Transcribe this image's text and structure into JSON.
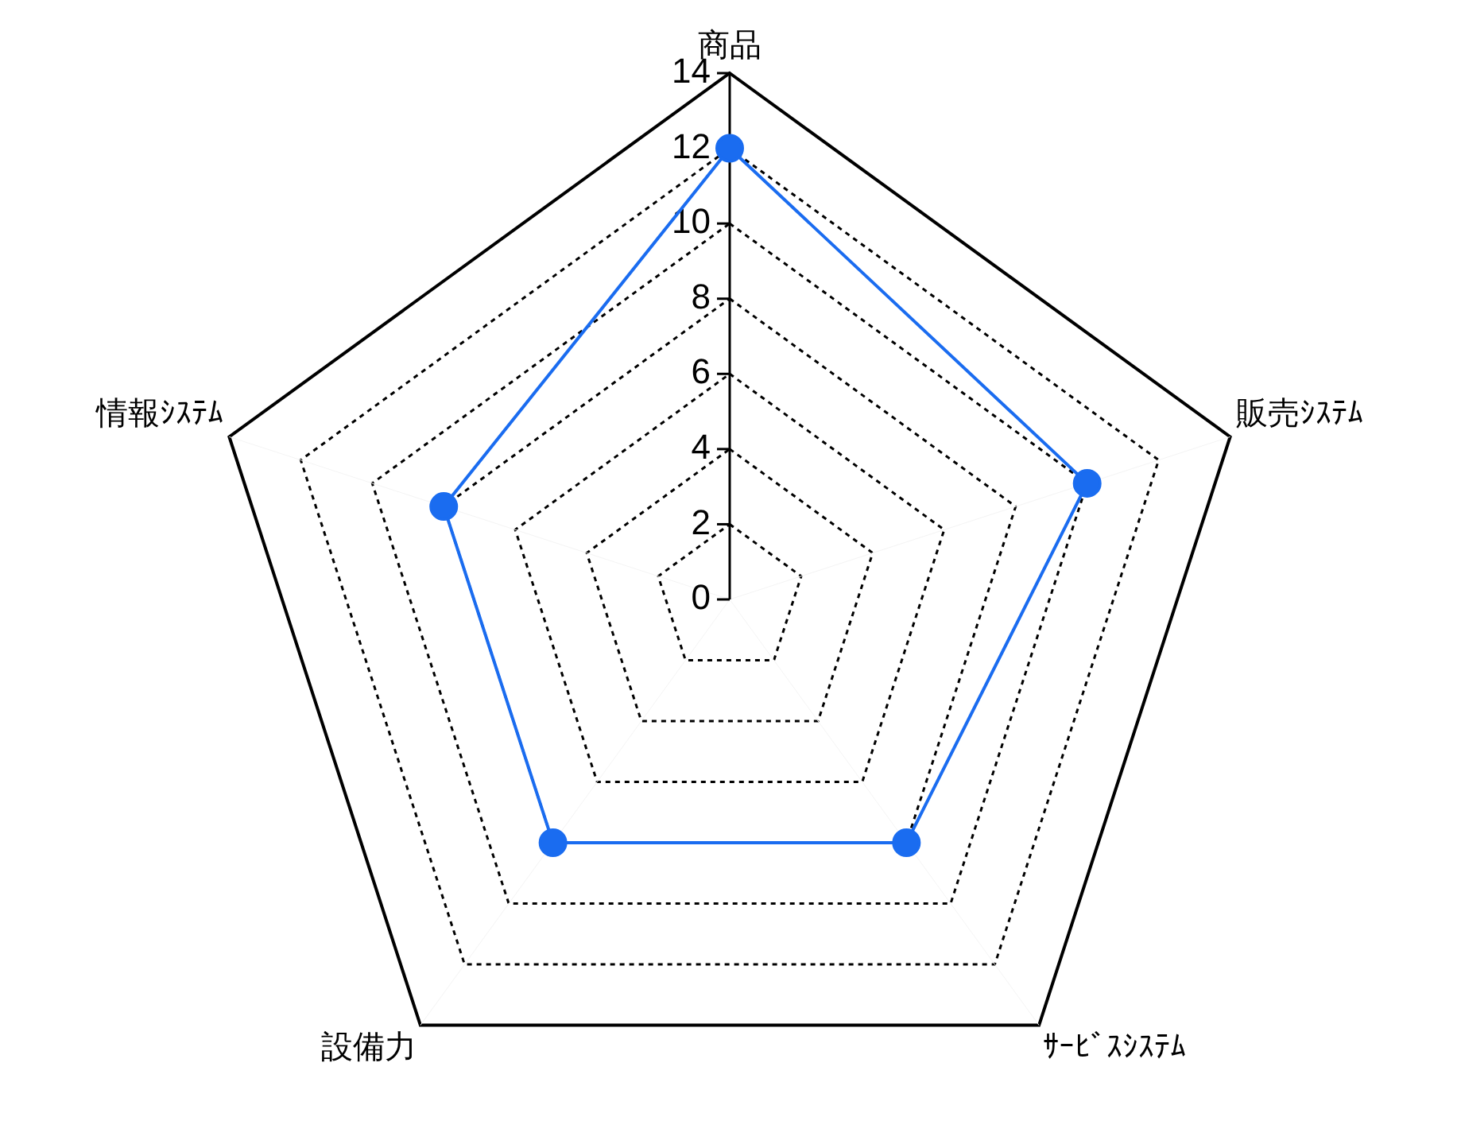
{
  "chart_data": {
    "type": "radar",
    "categories": [
      "商品",
      "販売ｼｽﾃﾑ",
      "ｻｰﾋﾞｽｼｽﾃﾑ",
      "設備力",
      "情報ｼｽﾃﾑ"
    ],
    "series": [
      {
        "color": "#1a6cf0",
        "values": [
          12,
          10,
          8,
          8,
          8
        ]
      }
    ],
    "ylim": [
      0,
      14
    ],
    "yticks": [
      0,
      2,
      4,
      6,
      8,
      10,
      12,
      14
    ],
    "grid": true,
    "legend": false,
    "marker": "circle",
    "line_style": "solid"
  }
}
